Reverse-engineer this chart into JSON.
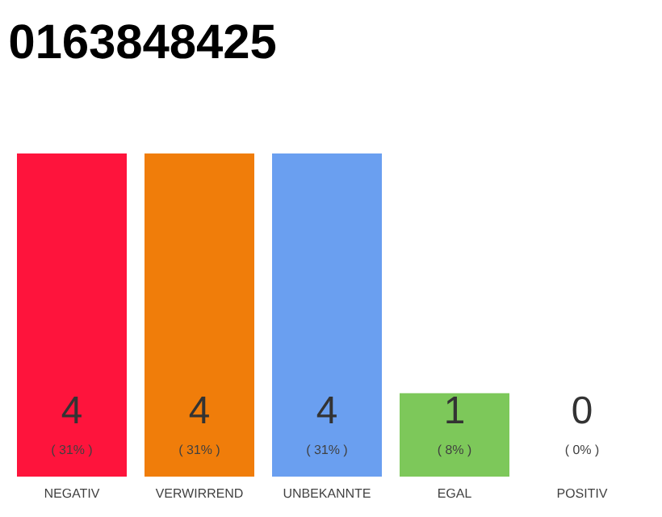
{
  "chart_data": {
    "type": "bar",
    "title": "0163848425",
    "categories": [
      "NEGATIV",
      "VERWIRREND",
      "UNBEKANNTE",
      "EGAL",
      "POSITIV"
    ],
    "values": [
      31,
      31,
      31,
      8,
      0
    ],
    "colors": [
      "#fe143c",
      "#f07d0a",
      "#6a9ff0",
      "#7dc85a",
      "#e0e0e0"
    ],
    "value_labels": [
      "( 31% )",
      "( 31% )",
      "( 31% )",
      "( 8% )",
      "( 0% )"
    ],
    "annotations": [
      "4",
      "4",
      "4",
      "1",
      "0"
    ]
  }
}
